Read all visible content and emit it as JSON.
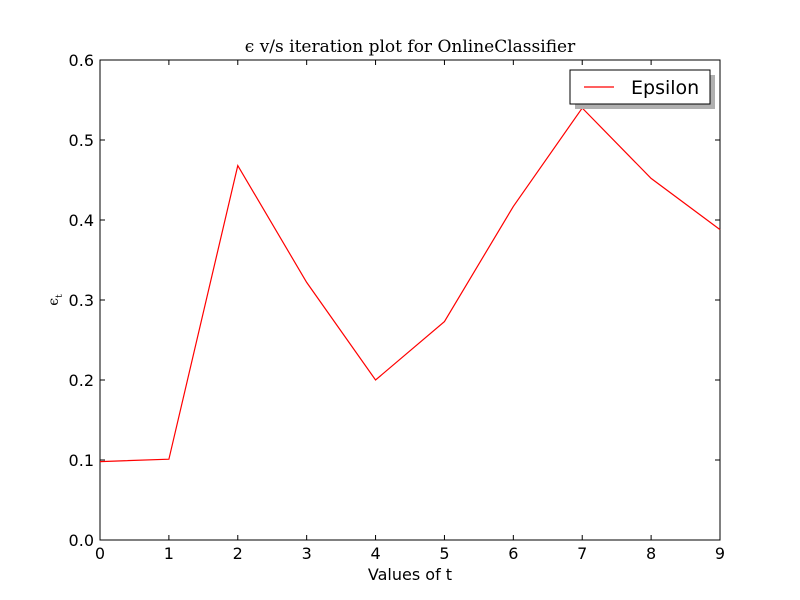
{
  "chart_data": {
    "type": "line",
    "title": "ϵ v/s iteration plot for OnlineClassifier",
    "xlabel": "Values of t",
    "ylabel_main": "ϵ",
    "ylabel_sub": "t",
    "xlim": [
      0,
      9
    ],
    "ylim": [
      0.0,
      0.6
    ],
    "xticks": [
      "0",
      "1",
      "2",
      "3",
      "4",
      "5",
      "6",
      "7",
      "8",
      "9"
    ],
    "yticks": [
      "0.0",
      "0.1",
      "0.2",
      "0.3",
      "0.4",
      "0.5",
      "0.6"
    ],
    "grid": false,
    "legend_position": "top-right",
    "series": [
      {
        "name": "Epsilon",
        "color": "#ff0000",
        "x": [
          0,
          1,
          2,
          3,
          4,
          5,
          6,
          7,
          8,
          9
        ],
        "y": [
          0.098,
          0.101,
          0.468,
          0.322,
          0.2,
          0.273,
          0.417,
          0.54,
          0.452,
          0.388
        ]
      }
    ]
  }
}
